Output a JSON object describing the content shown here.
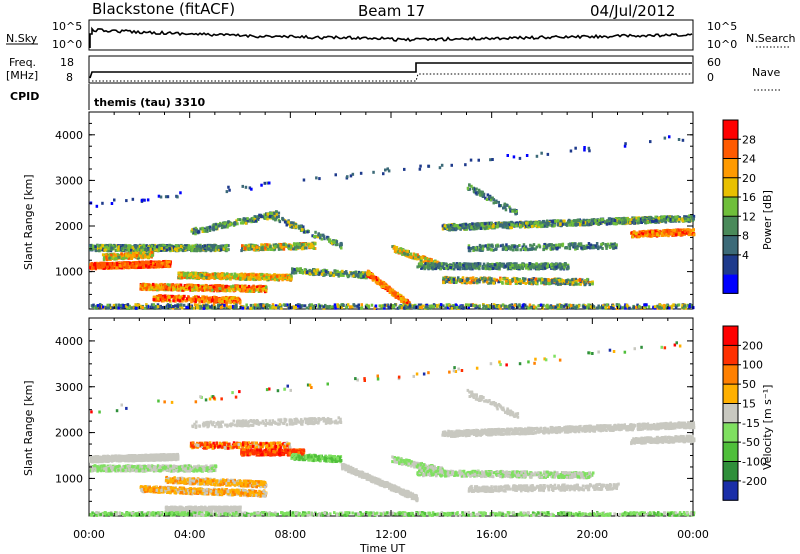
{
  "header": {
    "station": "Blackstone (fitACF)",
    "beam": "Beam 17",
    "date": "04/Jul/2012"
  },
  "panels": {
    "nsky_label": "N.Sky",
    "nsky_ticks": [
      "10^5",
      "10^0"
    ],
    "nsearch_label": "N.Search",
    "nsearch_ticks": [
      "10^5",
      "10^0"
    ],
    "freq_label_1": "Freq.",
    "freq_label_2": "[MHz]",
    "freq_ticks": [
      "18",
      "8"
    ],
    "nave_label": "Nave",
    "nave_ticks": [
      "60",
      "0"
    ],
    "cpid_label": "CPID",
    "cpid_value": "themis (tau) 3310"
  },
  "chart_data": [
    {
      "type": "heatmap",
      "name": "power",
      "ylabel": "Slant Range [km]",
      "y_ticks": [
        "4000",
        "3000",
        "2000",
        "1000"
      ],
      "ylim": [
        180,
        4500
      ],
      "x_ticks": [
        "00:00",
        "04:00",
        "08:00",
        "12:00",
        "16:00",
        "20:00",
        "00:00"
      ],
      "colorbar": {
        "label": "Power [dB]",
        "ticks": [
          "28",
          "24",
          "20",
          "16",
          "12",
          "8",
          "4"
        ],
        "colors": [
          "#0000ff",
          "#1e3a8c",
          "#3c6a78",
          "#4a8a5a",
          "#6fbf3a",
          "#e8c000",
          "#ff9a00",
          "#ff5a00",
          "#ff0000"
        ]
      }
    },
    {
      "type": "heatmap",
      "name": "velocity",
      "ylabel": "Slant Range [km]",
      "y_ticks": [
        "4000",
        "3000",
        "2000",
        "1000"
      ],
      "ylim": [
        180,
        4500
      ],
      "x_ticks": [
        "00:00",
        "04:00",
        "08:00",
        "12:00",
        "16:00",
        "20:00",
        "00:00"
      ],
      "xlabel": "Time UT",
      "colorbar": {
        "label": "Velocity [m s⁻¹]",
        "ticks": [
          "200",
          "100",
          "50",
          "15",
          "-15",
          "-50",
          "-100",
          "-200"
        ],
        "colors": [
          "#1a2ea8",
          "#2f8f3a",
          "#4fbf3a",
          "#7fe060",
          "#c8c8c0",
          "#ffb000",
          "#ff8000",
          "#ff3000",
          "#ff0000"
        ]
      }
    }
  ]
}
